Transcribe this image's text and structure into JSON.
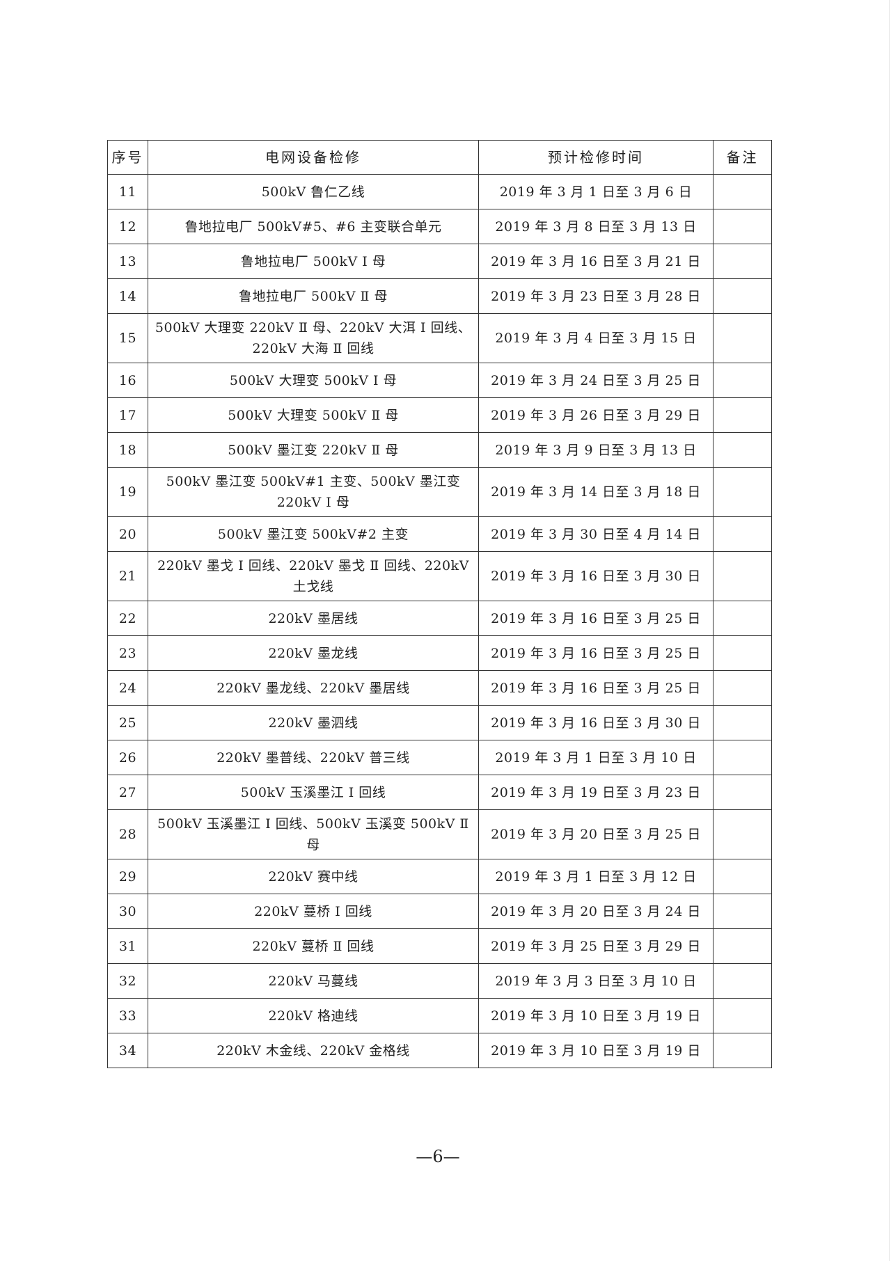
{
  "table": {
    "headers": [
      "序号",
      "电网设备检修",
      "预计检修时间",
      "备注"
    ],
    "rows": [
      {
        "no": "11",
        "equipment": "500kV 鲁仁乙线",
        "time": "2019 年 3 月 1 日至 3 月 6 日",
        "note": ""
      },
      {
        "no": "12",
        "equipment": "鲁地拉电厂 500kV#5、#6 主变联合单元",
        "time": "2019 年 3 月 8 日至 3 月 13 日",
        "note": ""
      },
      {
        "no": "13",
        "equipment": "鲁地拉电厂 500kV Ⅰ 母",
        "time": "2019 年 3 月 16 日至 3 月 21 日",
        "note": ""
      },
      {
        "no": "14",
        "equipment": "鲁地拉电厂 500kV Ⅱ 母",
        "time": "2019 年 3 月 23 日至 3 月 28 日",
        "note": ""
      },
      {
        "no": "15",
        "equipment": "500kV 大理变 220kV Ⅱ 母、220kV 大洱 Ⅰ 回线、220kV 大海 Ⅱ 回线",
        "time": "2019 年 3 月 4 日至 3 月 15 日",
        "note": ""
      },
      {
        "no": "16",
        "equipment": "500kV 大理变 500kV Ⅰ 母",
        "time": "2019 年 3 月 24 日至 3 月 25 日",
        "note": ""
      },
      {
        "no": "17",
        "equipment": "500kV 大理变 500kV Ⅱ 母",
        "time": "2019 年 3 月 26 日至 3 月 29 日",
        "note": ""
      },
      {
        "no": "18",
        "equipment": "500kV 墨江变 220kV Ⅱ 母",
        "time": "2019 年 3 月 9 日至 3 月 13 日",
        "note": ""
      },
      {
        "no": "19",
        "equipment": "500kV 墨江变 500kV#1 主变、500kV 墨江变 220kV Ⅰ 母",
        "time": "2019 年 3 月 14 日至 3 月 18 日",
        "note": ""
      },
      {
        "no": "20",
        "equipment": "500kV 墨江变 500kV#2 主变",
        "time": "2019 年 3 月 30 日至 4 月 14 日",
        "note": ""
      },
      {
        "no": "21",
        "equipment": "220kV 墨戈 Ⅰ 回线、220kV 墨戈 Ⅱ 回线、220kV 土戈线",
        "time": "2019 年 3 月 16 日至 3 月 30 日",
        "note": ""
      },
      {
        "no": "22",
        "equipment": "220kV 墨居线",
        "time": "2019 年 3 月 16 日至 3 月 25 日",
        "note": ""
      },
      {
        "no": "23",
        "equipment": "220kV 墨龙线",
        "time": "2019 年 3 月 16 日至 3 月 25 日",
        "note": ""
      },
      {
        "no": "24",
        "equipment": "220kV 墨龙线、220kV 墨居线",
        "time": "2019 年 3 月 16 日至 3 月 25 日",
        "note": ""
      },
      {
        "no": "25",
        "equipment": "220kV 墨泗线",
        "time": "2019 年 3 月 16 日至 3 月 30 日",
        "note": ""
      },
      {
        "no": "26",
        "equipment": "220kV 墨普线、220kV 普三线",
        "time": "2019 年 3 月 1 日至 3 月 10 日",
        "note": ""
      },
      {
        "no": "27",
        "equipment": "500kV 玉溪墨江 Ⅰ 回线",
        "time": "2019 年 3 月 19 日至 3 月 23 日",
        "note": ""
      },
      {
        "no": "28",
        "equipment": "500kV 玉溪墨江 Ⅰ 回线、500kV 玉溪变 500kV Ⅱ 母",
        "time": "2019 年 3 月 20 日至 3 月 25 日",
        "note": ""
      },
      {
        "no": "29",
        "equipment": "220kV 赛中线",
        "time": "2019 年 3 月 1 日至 3 月 12 日",
        "note": ""
      },
      {
        "no": "30",
        "equipment": "220kV 蔓桥 Ⅰ 回线",
        "time": "2019 年 3 月 20 日至 3 月 24 日",
        "note": ""
      },
      {
        "no": "31",
        "equipment": "220kV 蔓桥 Ⅱ 回线",
        "time": "2019 年 3 月 25 日至 3 月 29 日",
        "note": ""
      },
      {
        "no": "32",
        "equipment": "220kV 马蔓线",
        "time": "2019 年 3 月 3 日至 3 月 10 日",
        "note": ""
      },
      {
        "no": "33",
        "equipment": "220kV 格迪线",
        "time": "2019 年 3 月 10 日至 3 月 19 日",
        "note": ""
      },
      {
        "no": "34",
        "equipment": "220kV 木金线、220kV 金格线",
        "time": "2019 年 3 月 10 日至 3 月 19 日",
        "note": ""
      }
    ]
  },
  "footer": {
    "page_number": "—6—"
  }
}
